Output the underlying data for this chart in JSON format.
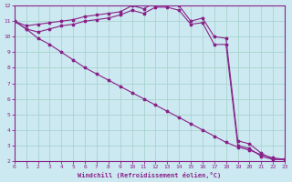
{
  "xlabel": "Windchill (Refroidissement éolien,°C)",
  "background_color": "#cce8f0",
  "grid_color": "#a0d0c8",
  "line_color": "#882288",
  "xlim": [
    0,
    23
  ],
  "ylim": [
    2,
    12
  ],
  "yticks": [
    2,
    3,
    4,
    5,
    6,
    7,
    8,
    9,
    10,
    11,
    12
  ],
  "xticks": [
    0,
    1,
    2,
    3,
    4,
    5,
    6,
    7,
    8,
    9,
    10,
    11,
    12,
    13,
    14,
    15,
    16,
    17,
    18,
    19,
    20,
    21,
    22,
    23
  ],
  "curve1_x": [
    0,
    1,
    2,
    3,
    4,
    5,
    6,
    7,
    8,
    9,
    10,
    11,
    12,
    13,
    14,
    15,
    16,
    17,
    18,
    19,
    20,
    21,
    22,
    23
  ],
  "curve1_y": [
    11.0,
    10.7,
    10.8,
    10.9,
    11.0,
    11.1,
    11.3,
    11.4,
    11.5,
    11.6,
    12.0,
    11.8,
    12.2,
    12.2,
    12.0,
    11.0,
    11.2,
    10.0,
    9.9,
    3.3,
    3.1,
    2.5,
    2.1,
    2.1
  ],
  "curve2_x": [
    0,
    1,
    2,
    3,
    4,
    5,
    6,
    7,
    8,
    9,
    10,
    11,
    12,
    13,
    14,
    15,
    16,
    17,
    18,
    19,
    20,
    21,
    22,
    23
  ],
  "curve2_y": [
    11.0,
    10.5,
    10.3,
    10.5,
    10.7,
    10.8,
    11.0,
    11.1,
    11.2,
    11.4,
    11.7,
    11.5,
    11.9,
    11.9,
    11.7,
    10.8,
    10.9,
    9.5,
    9.5,
    3.0,
    2.8,
    2.3,
    2.1,
    2.1
  ],
  "curve3_x": [
    0,
    1,
    2,
    3,
    4,
    5,
    6,
    7,
    8,
    9,
    10,
    11,
    12,
    13,
    14,
    15,
    16,
    17,
    18,
    19,
    20,
    21,
    22,
    23
  ],
  "curve3_y": [
    11.0,
    10.5,
    9.9,
    9.5,
    9.0,
    8.5,
    8.0,
    7.6,
    7.2,
    6.8,
    6.4,
    6.0,
    5.6,
    5.2,
    4.8,
    4.4,
    4.0,
    3.6,
    3.2,
    2.9,
    2.7,
    2.4,
    2.2,
    2.1
  ],
  "marker_size": 2.5,
  "linewidth": 0.8
}
